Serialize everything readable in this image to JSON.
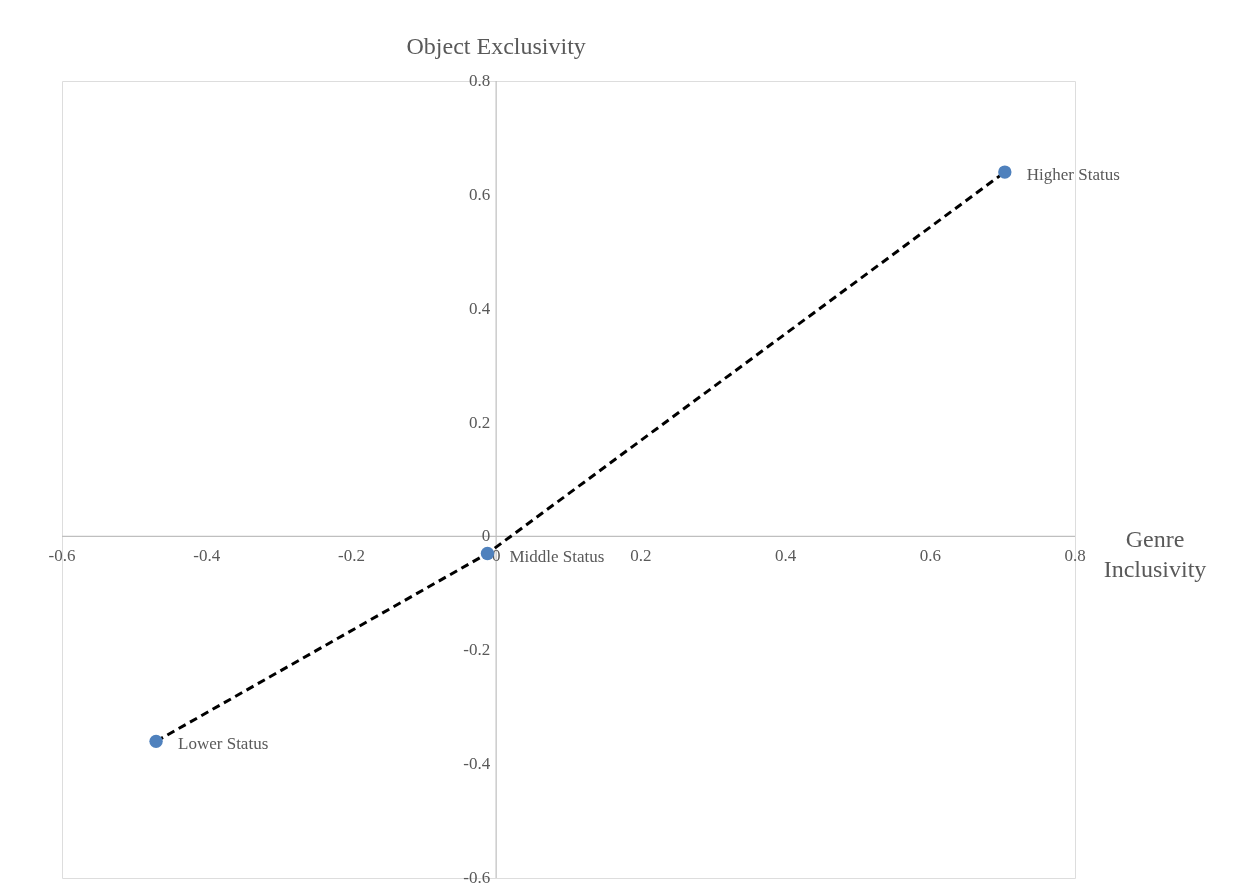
{
  "chart_data": {
    "type": "scatter",
    "xlabel": "Genre Inclusivity",
    "ylabel": "Object Exclusivity",
    "xlim": [
      -0.6,
      0.8
    ],
    "ylim": [
      -0.6,
      0.8
    ],
    "xticks": [
      -0.6,
      -0.4,
      -0.2,
      0,
      0.2,
      0.4,
      0.6,
      0.8
    ],
    "yticks": [
      -0.6,
      -0.4,
      -0.2,
      0,
      0.2,
      0.4,
      0.6,
      0.8
    ],
    "grid": false,
    "series": [
      {
        "marker": "circle",
        "color": "#4f81bd",
        "x": [
          -0.47,
          -0.012,
          0.703
        ],
        "values": [
          -0.36,
          -0.03,
          0.64
        ]
      },
      {
        "type": "line",
        "marker": "none",
        "color": "#000000",
        "line_style": "dashed",
        "x": [
          -0.47,
          -0.012,
          0.703
        ],
        "values": [
          -0.36,
          -0.03,
          0.64
        ]
      }
    ],
    "annotations": [
      {
        "text": "Lower Status",
        "x": -0.47,
        "y": -0.36
      },
      {
        "text": "Middle Status",
        "x": -0.012,
        "y": -0.03
      },
      {
        "text": "Higher Status",
        "x": 0.703,
        "y": 0.64
      }
    ]
  }
}
